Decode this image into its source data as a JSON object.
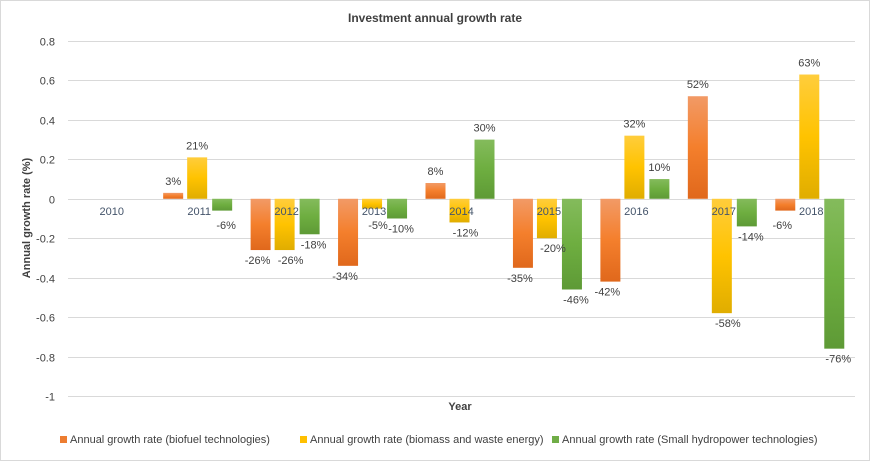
{
  "chart_data": {
    "type": "bar",
    "title": "Investment annual growth rate",
    "xlabel": "Year",
    "ylabel": "Annual growth rate (%)",
    "ylim": [
      -1,
      0.8
    ],
    "yticks": [
      "0.8",
      "0.6",
      "0.4",
      "0.2",
      "0",
      "-0.2",
      "-0.4",
      "-0.6",
      "-0.8",
      "-1"
    ],
    "grid": true,
    "legend": "bottom",
    "categories": [
      "2010",
      "2011",
      "2012",
      "2013",
      "2014",
      "2015",
      "2016",
      "2017",
      "2018"
    ],
    "series": [
      {
        "name": "Annual growth rate (biofuel technologies)",
        "color": "#ed7d31",
        "values": [
          null,
          0.03,
          -0.26,
          -0.34,
          0.08,
          -0.35,
          -0.42,
          0.52,
          -0.06
        ],
        "labels": [
          "",
          "3%",
          "-26%",
          "-34%",
          "8%",
          "-35%",
          "-42%",
          "52%",
          "-6%"
        ]
      },
      {
        "name": "Annual growth rate (biomass and waste energy)",
        "color": "#ffc000",
        "values": [
          null,
          0.21,
          -0.26,
          -0.05,
          -0.12,
          -0.2,
          0.32,
          -0.58,
          0.63
        ],
        "labels": [
          "",
          "21%",
          "-26%",
          "-5%",
          "-12%",
          "-20%",
          "32%",
          "-58%",
          "63%"
        ]
      },
      {
        "name": "Annual growth rate (Small hydropower technologies)",
        "color": "#70ad47",
        "values": [
          null,
          -0.06,
          -0.18,
          -0.1,
          0.3,
          -0.46,
          0.1,
          -0.14,
          -0.76
        ],
        "labels": [
          "",
          "-6%",
          "-18%",
          "-10%",
          "30%",
          "-46%",
          "10%",
          "-14%",
          "-76%"
        ]
      }
    ]
  }
}
